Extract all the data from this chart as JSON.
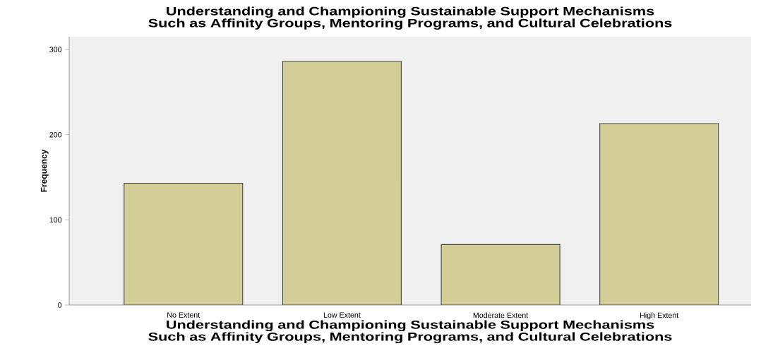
{
  "chart_data": {
    "type": "bar",
    "title": "Understanding and Championing Sustainable Support Mechanisms Such as Affinity Groups, Mentoring Programs, and Cultural Celebrations",
    "xlabel": "Understanding and Championing Sustainable Support Mechanisms Such as Affinity Groups, Mentoring Programs, and Cultural Celebrations",
    "ylabel": "Frequency",
    "categories": [
      "No Extent",
      "Low Extent",
      "Moderate Extent",
      "High Extent"
    ],
    "values": [
      143,
      286,
      71,
      213
    ],
    "color": "#d3ce97",
    "ylim": [
      0,
      315
    ],
    "yticks": [
      0,
      100,
      200,
      300
    ],
    "grid": false
  }
}
